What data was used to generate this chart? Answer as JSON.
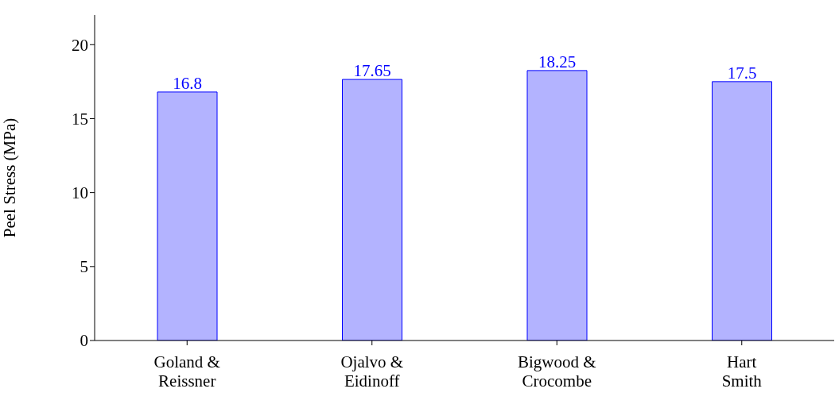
{
  "chart_data": {
    "type": "bar",
    "ylabel": "Peel Stress (MPa)",
    "categories": [
      "Goland & Reissner",
      "Ojalvo & Eidinoff",
      "Bigwood & Crocombe",
      "Hart Smith"
    ],
    "values": [
      16.8,
      17.65,
      18.25,
      17.5
    ],
    "color": "#b3b3ff",
    "ylim": [
      0,
      22
    ],
    "yticks": [
      0,
      5,
      10,
      15,
      20
    ],
    "grid": false,
    "data_labels": true
  }
}
